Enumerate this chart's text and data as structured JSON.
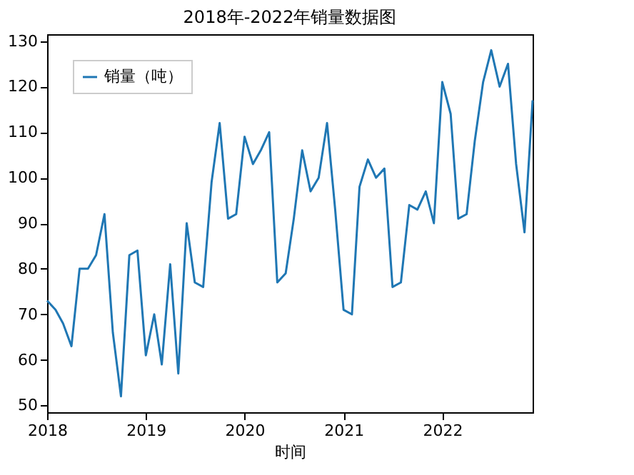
{
  "chart_data": {
    "type": "line",
    "title": "2018年-2022年销量数据图",
    "xlabel": "时间",
    "x": [
      "2018-01",
      "2018-02",
      "2018-03",
      "2018-04",
      "2018-05",
      "2018-06",
      "2018-07",
      "2018-08",
      "2018-09",
      "2018-10",
      "2018-11",
      "2018-12",
      "2019-01",
      "2019-02",
      "2019-03",
      "2019-04",
      "2019-05",
      "2019-06",
      "2019-07",
      "2019-08",
      "2019-09",
      "2019-10",
      "2019-11",
      "2019-12",
      "2020-01",
      "2020-02",
      "2020-03",
      "2020-04",
      "2020-05",
      "2020-06",
      "2020-07",
      "2020-08",
      "2020-09",
      "2020-10",
      "2020-11",
      "2020-12",
      "2021-01",
      "2021-02",
      "2021-03",
      "2021-04",
      "2021-05",
      "2021-06",
      "2021-07",
      "2021-08",
      "2021-09",
      "2021-10",
      "2021-11",
      "2021-12",
      "2022-01",
      "2022-02",
      "2022-03",
      "2022-04",
      "2022-05",
      "2022-06",
      "2022-07",
      "2022-08",
      "2022-09",
      "2022-10",
      "2022-11",
      "2022-12"
    ],
    "series": [
      {
        "name": "销量（吨）",
        "color": "#1f77b4",
        "values": [
          73,
          71,
          68,
          63,
          80,
          80,
          83,
          92,
          66,
          52,
          83,
          84,
          61,
          70,
          59,
          81,
          57,
          90,
          77,
          76,
          99,
          112,
          91,
          92,
          109,
          103,
          106,
          110,
          77,
          79,
          91,
          106,
          97,
          100,
          112,
          93,
          71,
          70,
          98,
          104,
          100,
          102,
          76,
          77,
          94,
          93,
          97,
          90,
          121,
          114,
          91,
          92,
          108,
          121,
          128,
          120,
          125,
          103,
          88,
          117
        ]
      }
    ],
    "xlim": [
      "2018-01",
      "2022-12"
    ],
    "xticks": [
      {
        "value": "2018-01",
        "label": "2018"
      },
      {
        "value": "2019-01",
        "label": "2019"
      },
      {
        "value": "2020-01",
        "label": "2020"
      },
      {
        "value": "2021-01",
        "label": "2021"
      },
      {
        "value": "2022-01",
        "label": "2022"
      }
    ],
    "ylim": [
      48.5,
      131.5
    ],
    "yticks": [
      50,
      60,
      70,
      80,
      90,
      100,
      110,
      120,
      130
    ],
    "grid": false,
    "legend": "top left",
    "marker": "none",
    "line_style": "solid"
  }
}
